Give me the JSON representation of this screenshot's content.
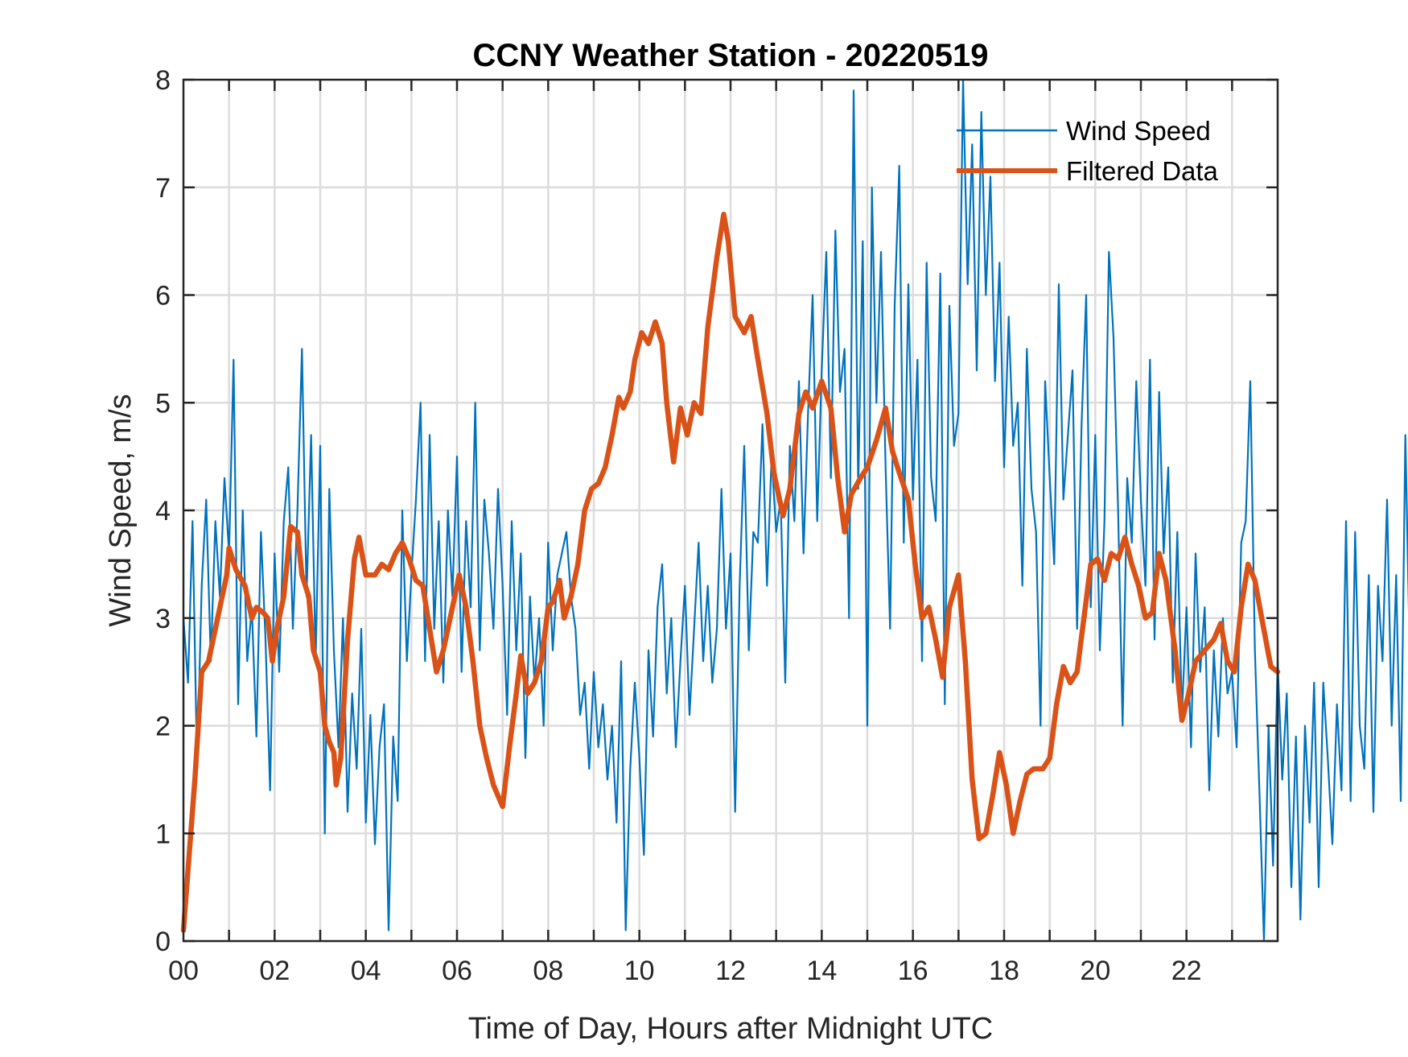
{
  "chart_data": {
    "type": "line",
    "title": "CCNY Weather Station - 20220519",
    "xlabel": "Time of Day, Hours after Midnight UTC",
    "ylabel": "Wind Speed, m/s",
    "xlim": [
      0,
      24
    ],
    "ylim": [
      0,
      8
    ],
    "grid": true,
    "legend_position": "top-right",
    "x_ticks": [
      0,
      2,
      4,
      6,
      8,
      10,
      12,
      14,
      16,
      18,
      20,
      22
    ],
    "x_tick_labels": [
      "00",
      "02",
      "04",
      "06",
      "08",
      "10",
      "12",
      "14",
      "16",
      "18",
      "20",
      "22"
    ],
    "x_minor_grid_step_hours": 1,
    "y_ticks": [
      0,
      1,
      2,
      3,
      4,
      5,
      6,
      7,
      8
    ],
    "y_tick_labels": [
      "0",
      "1",
      "2",
      "3",
      "4",
      "5",
      "6",
      "7",
      "8"
    ],
    "series": [
      {
        "name": "Wind Speed",
        "color": "#0072BD",
        "x_step_hours": 0.1,
        "values": [
          3.0,
          2.4,
          3.9,
          1.6,
          3.3,
          4.1,
          2.6,
          3.9,
          3.2,
          4.3,
          3.6,
          5.4,
          2.2,
          4.0,
          2.6,
          3.1,
          1.9,
          3.8,
          2.8,
          1.4,
          3.6,
          2.5,
          3.9,
          4.4,
          2.9,
          4.0,
          5.5,
          3.2,
          4.7,
          2.6,
          4.6,
          1.0,
          4.2,
          2.7,
          1.8,
          3.0,
          1.2,
          2.3,
          1.6,
          2.9,
          1.1,
          2.1,
          0.9,
          1.8,
          2.2,
          0.1,
          1.9,
          1.3,
          4.0,
          2.6,
          3.4,
          4.1,
          5.0,
          2.6,
          4.7,
          2.9,
          3.9,
          2.4,
          4.0,
          3.2,
          4.5,
          2.5,
          3.9,
          3.1,
          5.0,
          2.7,
          4.1,
          3.6,
          2.9,
          4.2,
          3.3,
          2.1,
          3.9,
          2.7,
          3.6,
          1.7,
          3.2,
          2.4,
          3.0,
          2.0,
          3.7,
          2.7,
          3.4,
          3.6,
          3.8,
          3.2,
          2.9,
          2.1,
          2.4,
          1.6,
          2.5,
          1.8,
          2.2,
          1.5,
          2.0,
          1.1,
          2.6,
          0.1,
          1.6,
          2.4,
          1.7,
          0.8,
          2.7,
          1.9,
          3.1,
          3.5,
          2.3,
          3.0,
          1.8,
          2.6,
          3.3,
          2.1,
          2.9,
          3.7,
          2.6,
          3.3,
          2.4,
          2.9,
          4.2,
          2.9,
          3.6,
          1.2,
          3.3,
          4.6,
          2.7,
          3.8,
          3.7,
          4.8,
          3.3,
          4.5,
          3.8,
          4.1,
          2.4,
          4.6,
          3.9,
          5.2,
          3.6,
          4.9,
          6.0,
          3.9,
          5.3,
          6.4,
          4.3,
          6.6,
          5.1,
          5.5,
          3.0,
          7.9,
          4.2,
          6.5,
          2.0,
          7.0,
          5.0,
          6.4,
          4.4,
          2.9,
          5.9,
          7.2,
          3.7,
          6.1,
          4.1,
          5.4,
          2.6,
          6.3,
          4.3,
          3.9,
          6.2,
          2.2,
          5.9,
          4.6,
          4.9,
          8.0,
          6.1,
          7.4,
          5.3,
          7.7,
          6.0,
          7.1,
          5.2,
          6.3,
          4.4,
          5.8,
          4.6,
          5.0,
          3.3,
          5.5,
          4.2,
          3.8,
          2.0,
          5.2,
          4.3,
          3.5,
          6.1,
          4.1,
          4.7,
          5.3,
          2.9,
          4.8,
          6.0,
          3.1,
          4.7,
          2.7,
          3.9,
          6.4,
          5.6,
          4.0,
          2.0,
          4.3,
          3.7,
          5.2,
          4.1,
          3.3,
          5.4,
          2.8,
          5.1,
          3.6,
          4.4,
          2.4,
          3.8,
          2.1,
          3.1,
          1.8,
          3.6,
          2.5,
          3.1,
          1.4,
          2.7,
          1.9,
          3.0,
          2.3,
          2.5,
          1.8,
          3.7,
          3.9,
          5.2,
          2.7,
          1.4,
          0.0,
          2.0,
          0.7,
          2.6,
          1.5,
          2.3,
          0.5,
          1.9,
          0.2,
          2.0,
          1.1,
          2.4,
          0.5,
          2.4,
          1.7,
          0.9,
          2.2,
          1.4,
          3.9,
          1.3,
          3.8,
          2.0,
          1.6,
          3.4,
          1.2,
          3.3,
          2.6,
          4.1,
          2.0,
          3.4,
          1.3,
          4.7,
          2.6,
          4.3,
          1.7,
          4.6,
          3.7,
          2.9,
          4.5,
          3.6,
          4.4,
          2.8,
          4.8,
          2.2,
          3.9,
          4.3,
          2.4,
          4.5,
          1.9,
          4.0,
          2.5,
          4.4,
          3.3,
          2.4,
          3.7,
          1.4,
          3.1,
          2.5,
          3.0,
          2.8,
          3.4,
          1.5,
          2.7,
          2.2,
          0.1,
          2.0,
          3.1,
          2.4,
          2.8,
          3.8,
          1.9,
          4.6,
          2.2,
          3.1,
          2.8,
          3.3,
          2.0,
          3.2,
          4.4,
          2.2,
          3.9,
          2.7,
          4.2,
          3.3,
          2.2,
          1.6,
          3.2,
          1.5
        ]
      },
      {
        "name": "Filtered Data",
        "color": "#D95319",
        "points": [
          [
            0.0,
            0.1
          ],
          [
            0.25,
            1.5
          ],
          [
            0.4,
            2.5
          ],
          [
            0.55,
            2.6
          ],
          [
            0.75,
            3.0
          ],
          [
            0.95,
            3.4
          ],
          [
            1.0,
            3.65
          ],
          [
            1.15,
            3.45
          ],
          [
            1.35,
            3.3
          ],
          [
            1.5,
            3.0
          ],
          [
            1.6,
            3.1
          ],
          [
            1.75,
            3.05
          ],
          [
            1.85,
            3.0
          ],
          [
            1.95,
            2.6
          ],
          [
            2.05,
            2.9
          ],
          [
            2.2,
            3.2
          ],
          [
            2.35,
            3.85
          ],
          [
            2.5,
            3.8
          ],
          [
            2.6,
            3.4
          ],
          [
            2.75,
            3.2
          ],
          [
            2.85,
            2.7
          ],
          [
            3.0,
            2.5
          ],
          [
            3.1,
            2.0
          ],
          [
            3.2,
            1.85
          ],
          [
            3.3,
            1.75
          ],
          [
            3.35,
            1.45
          ],
          [
            3.45,
            1.7
          ],
          [
            3.6,
            2.8
          ],
          [
            3.75,
            3.55
          ],
          [
            3.85,
            3.75
          ],
          [
            4.0,
            3.4
          ],
          [
            4.2,
            3.4
          ],
          [
            4.35,
            3.5
          ],
          [
            4.5,
            3.45
          ],
          [
            4.65,
            3.6
          ],
          [
            4.8,
            3.7
          ],
          [
            4.95,
            3.55
          ],
          [
            5.1,
            3.35
          ],
          [
            5.25,
            3.3
          ],
          [
            5.4,
            2.9
          ],
          [
            5.55,
            2.5
          ],
          [
            5.7,
            2.7
          ],
          [
            5.85,
            3.0
          ],
          [
            6.05,
            3.4
          ],
          [
            6.2,
            3.1
          ],
          [
            6.35,
            2.6
          ],
          [
            6.5,
            2.0
          ],
          [
            6.65,
            1.7
          ],
          [
            6.8,
            1.45
          ],
          [
            6.95,
            1.3
          ],
          [
            7.0,
            1.25
          ],
          [
            7.15,
            1.8
          ],
          [
            7.3,
            2.3
          ],
          [
            7.4,
            2.65
          ],
          [
            7.55,
            2.3
          ],
          [
            7.7,
            2.4
          ],
          [
            7.85,
            2.6
          ],
          [
            8.0,
            3.1
          ],
          [
            8.1,
            3.15
          ],
          [
            8.25,
            3.35
          ],
          [
            8.35,
            3.0
          ],
          [
            8.5,
            3.2
          ],
          [
            8.65,
            3.5
          ],
          [
            8.8,
            4.0
          ],
          [
            8.95,
            4.2
          ],
          [
            9.1,
            4.25
          ],
          [
            9.25,
            4.4
          ],
          [
            9.4,
            4.7
          ],
          [
            9.55,
            5.05
          ],
          [
            9.65,
            4.95
          ],
          [
            9.8,
            5.1
          ],
          [
            9.9,
            5.4
          ],
          [
            10.05,
            5.65
          ],
          [
            10.2,
            5.55
          ],
          [
            10.35,
            5.75
          ],
          [
            10.5,
            5.55
          ],
          [
            10.6,
            5.0
          ],
          [
            10.75,
            4.45
          ],
          [
            10.9,
            4.95
          ],
          [
            11.05,
            4.7
          ],
          [
            11.2,
            5.0
          ],
          [
            11.35,
            4.9
          ],
          [
            11.5,
            5.7
          ],
          [
            11.7,
            6.35
          ],
          [
            11.85,
            6.75
          ],
          [
            11.95,
            6.5
          ],
          [
            12.1,
            5.8
          ],
          [
            12.3,
            5.65
          ],
          [
            12.45,
            5.8
          ],
          [
            12.6,
            5.4
          ],
          [
            12.8,
            4.9
          ],
          [
            12.95,
            4.35
          ],
          [
            13.15,
            3.95
          ],
          [
            13.3,
            4.2
          ],
          [
            13.5,
            4.9
          ],
          [
            13.65,
            5.1
          ],
          [
            13.8,
            4.95
          ],
          [
            14.0,
            5.2
          ],
          [
            14.2,
            4.95
          ],
          [
            14.35,
            4.3
          ],
          [
            14.5,
            3.8
          ],
          [
            14.65,
            4.15
          ],
          [
            14.85,
            4.3
          ],
          [
            15.0,
            4.4
          ],
          [
            15.2,
            4.65
          ],
          [
            15.4,
            4.95
          ],
          [
            15.55,
            4.55
          ],
          [
            15.7,
            4.35
          ],
          [
            15.9,
            4.1
          ],
          [
            16.05,
            3.5
          ],
          [
            16.2,
            3.0
          ],
          [
            16.35,
            3.1
          ],
          [
            16.5,
            2.8
          ],
          [
            16.65,
            2.45
          ],
          [
            16.8,
            3.1
          ],
          [
            17.0,
            3.4
          ],
          [
            17.15,
            2.6
          ],
          [
            17.3,
            1.5
          ],
          [
            17.45,
            0.95
          ],
          [
            17.6,
            1.0
          ],
          [
            17.75,
            1.35
          ],
          [
            17.9,
            1.75
          ],
          [
            18.05,
            1.45
          ],
          [
            18.2,
            1.0
          ],
          [
            18.35,
            1.3
          ],
          [
            18.5,
            1.55
          ],
          [
            18.65,
            1.6
          ],
          [
            18.85,
            1.6
          ],
          [
            19.0,
            1.7
          ],
          [
            19.15,
            2.2
          ],
          [
            19.3,
            2.55
          ],
          [
            19.45,
            2.4
          ],
          [
            19.6,
            2.5
          ],
          [
            19.75,
            3.0
          ],
          [
            19.9,
            3.5
          ],
          [
            20.05,
            3.55
          ],
          [
            20.2,
            3.35
          ],
          [
            20.35,
            3.6
          ],
          [
            20.5,
            3.55
          ],
          [
            20.65,
            3.75
          ],
          [
            20.8,
            3.5
          ],
          [
            20.95,
            3.3
          ],
          [
            21.1,
            3.0
          ],
          [
            21.25,
            3.05
          ],
          [
            21.4,
            3.6
          ],
          [
            21.55,
            3.35
          ],
          [
            21.75,
            2.7
          ],
          [
            21.9,
            2.05
          ],
          [
            22.05,
            2.3
          ],
          [
            22.2,
            2.6
          ],
          [
            22.4,
            2.7
          ],
          [
            22.6,
            2.8
          ],
          [
            22.75,
            2.95
          ],
          [
            22.9,
            2.6
          ],
          [
            23.05,
            2.5
          ],
          [
            23.2,
            3.1
          ],
          [
            23.35,
            3.5
          ],
          [
            23.5,
            3.35
          ],
          [
            23.65,
            3.0
          ],
          [
            23.85,
            2.55
          ],
          [
            24.0,
            2.5
          ]
        ]
      }
    ]
  }
}
